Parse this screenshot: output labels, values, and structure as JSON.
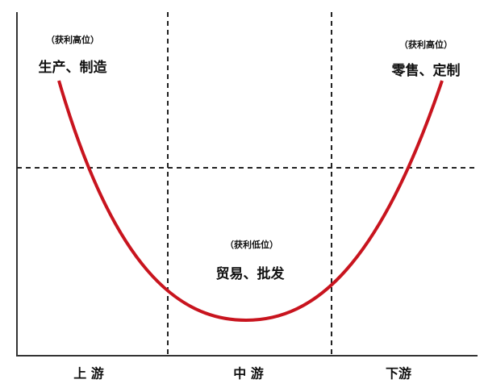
{
  "regions": [
    {
      "note": "（获利高位）",
      "label": "生产、制造",
      "axis_label": "上 游"
    },
    {
      "note": "（获利低位）",
      "label": "贸易、批发",
      "axis_label": "中 游"
    },
    {
      "note": "（获利高位）",
      "label": "零售、定制",
      "axis_label": "下游"
    }
  ]
}
